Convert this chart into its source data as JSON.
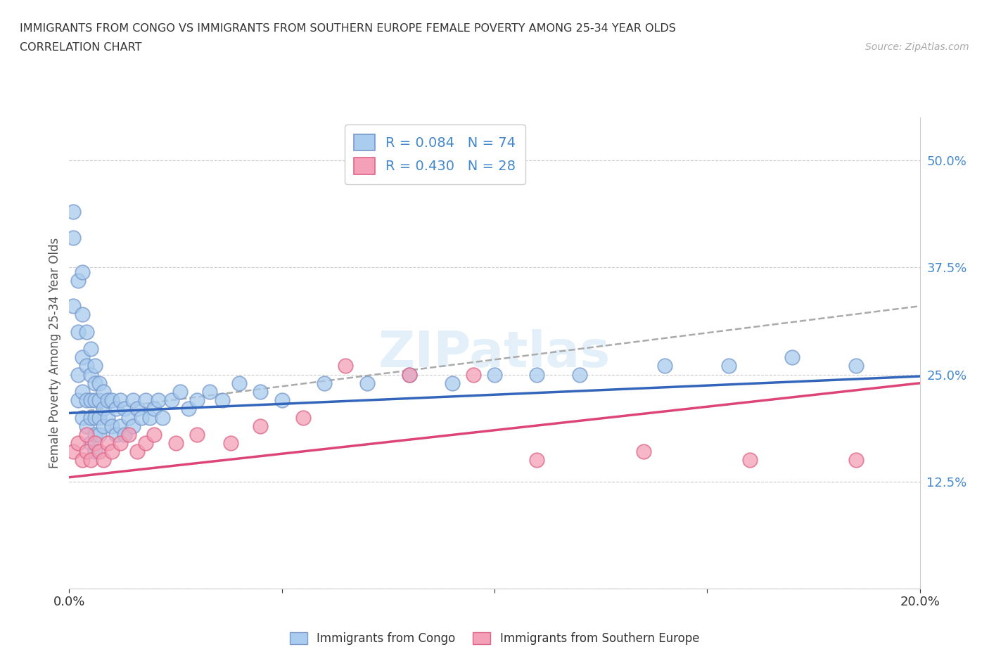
{
  "title_line1": "IMMIGRANTS FROM CONGO VS IMMIGRANTS FROM SOUTHERN EUROPE FEMALE POVERTY AMONG 25-34 YEAR OLDS",
  "title_line2": "CORRELATION CHART",
  "source_text": "Source: ZipAtlas.com",
  "ylabel": "Female Poverty Among 25-34 Year Olds",
  "xlim": [
    0.0,
    0.2
  ],
  "ylim": [
    0.0,
    0.55
  ],
  "congo_color": "#aaccee",
  "congo_edge_color": "#7799cc",
  "se_color": "#f4a0b8",
  "se_edge_color": "#dd6688",
  "trend_congo_color": "#3366bb",
  "trend_se_color": "#dd4477",
  "trend_gray_color": "#aaaaaa",
  "R_congo": 0.084,
  "N_congo": 74,
  "R_se": 0.43,
  "N_se": 28,
  "watermark": "ZIPatlas",
  "ytick_color": "#4488cc",
  "xtick_color": "#333333",
  "background_color": "#ffffff",
  "congo_x": [
    0.001,
    0.001,
    0.001,
    0.002,
    0.002,
    0.002,
    0.002,
    0.003,
    0.003,
    0.003,
    0.003,
    0.003,
    0.004,
    0.004,
    0.004,
    0.004,
    0.005,
    0.005,
    0.005,
    0.005,
    0.005,
    0.006,
    0.006,
    0.006,
    0.006,
    0.006,
    0.006,
    0.007,
    0.007,
    0.007,
    0.007,
    0.008,
    0.008,
    0.008,
    0.009,
    0.009,
    0.01,
    0.01,
    0.011,
    0.011,
    0.012,
    0.012,
    0.013,
    0.013,
    0.014,
    0.015,
    0.015,
    0.016,
    0.017,
    0.018,
    0.019,
    0.02,
    0.021,
    0.022,
    0.024,
    0.026,
    0.028,
    0.03,
    0.033,
    0.036,
    0.04,
    0.045,
    0.05,
    0.06,
    0.07,
    0.08,
    0.09,
    0.1,
    0.11,
    0.12,
    0.14,
    0.155,
    0.17,
    0.185
  ],
  "congo_y": [
    0.44,
    0.41,
    0.33,
    0.36,
    0.3,
    0.25,
    0.22,
    0.37,
    0.32,
    0.27,
    0.23,
    0.2,
    0.3,
    0.26,
    0.22,
    0.19,
    0.28,
    0.25,
    0.22,
    0.2,
    0.17,
    0.26,
    0.24,
    0.22,
    0.2,
    0.18,
    0.16,
    0.24,
    0.22,
    0.2,
    0.18,
    0.23,
    0.21,
    0.19,
    0.22,
    0.2,
    0.22,
    0.19,
    0.21,
    0.18,
    0.22,
    0.19,
    0.21,
    0.18,
    0.2,
    0.22,
    0.19,
    0.21,
    0.2,
    0.22,
    0.2,
    0.21,
    0.22,
    0.2,
    0.22,
    0.23,
    0.21,
    0.22,
    0.23,
    0.22,
    0.24,
    0.23,
    0.22,
    0.24,
    0.24,
    0.25,
    0.24,
    0.25,
    0.25,
    0.25,
    0.26,
    0.26,
    0.27,
    0.26
  ],
  "se_x": [
    0.001,
    0.002,
    0.003,
    0.004,
    0.004,
    0.005,
    0.006,
    0.007,
    0.008,
    0.009,
    0.01,
    0.012,
    0.014,
    0.016,
    0.018,
    0.02,
    0.025,
    0.03,
    0.038,
    0.045,
    0.055,
    0.065,
    0.08,
    0.095,
    0.11,
    0.135,
    0.16,
    0.185
  ],
  "se_y": [
    0.16,
    0.17,
    0.15,
    0.16,
    0.18,
    0.15,
    0.17,
    0.16,
    0.15,
    0.17,
    0.16,
    0.17,
    0.18,
    0.16,
    0.17,
    0.18,
    0.17,
    0.18,
    0.17,
    0.19,
    0.2,
    0.26,
    0.25,
    0.25,
    0.15,
    0.16,
    0.15,
    0.15
  ],
  "trend_congo_x0": 0.0,
  "trend_congo_x1": 0.2,
  "trend_congo_y0": 0.205,
  "trend_congo_y1": 0.248,
  "trend_se_x0": 0.0,
  "trend_se_x1": 0.2,
  "trend_se_y0": 0.13,
  "trend_se_y1": 0.24,
  "trend_gray_x0": 0.0,
  "trend_gray_x1": 0.2,
  "trend_gray_y0": 0.205,
  "trend_gray_y1": 0.33
}
